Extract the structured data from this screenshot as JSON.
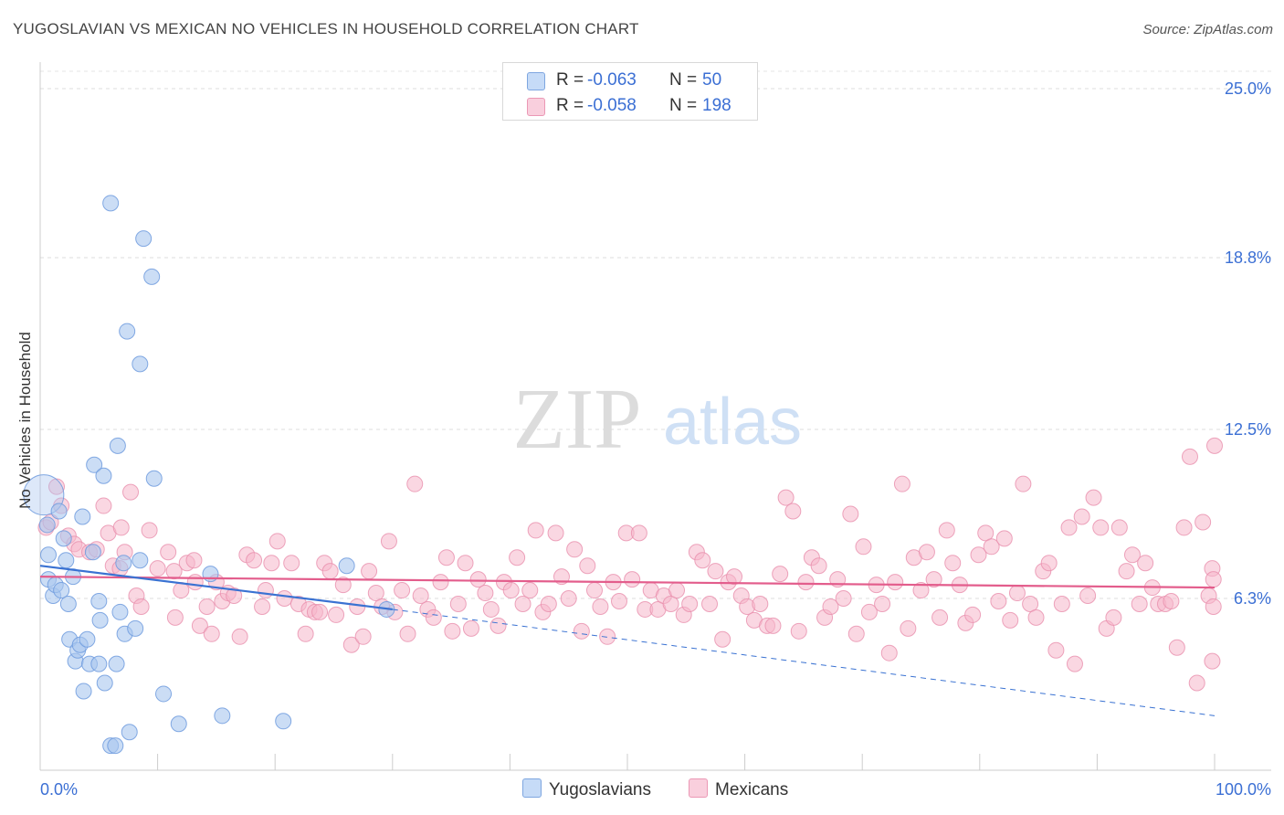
{
  "title": "YUGOSLAVIAN VS MEXICAN NO VEHICLES IN HOUSEHOLD CORRELATION CHART",
  "source": "Source: ZipAtlas.com",
  "watermark": {
    "zip": "ZIP",
    "atlas": "atlas"
  },
  "legend": {
    "rows": [
      {
        "r_label": "R =",
        "r_value": "-0.063",
        "n_label": "N =",
        "n_value": "50",
        "color": "#a9c6ef"
      },
      {
        "r_label": "R =",
        "r_value": "-0.058",
        "n_label": "N =",
        "n_value": "198",
        "color": "#f5b6cb"
      }
    ]
  },
  "bottom_legend": {
    "yugoslavians": "Yugoslavians",
    "mexicans": "Mexicans"
  },
  "chart_data": {
    "type": "scatter",
    "title": "YUGOSLAVIAN VS MEXICAN NO VEHICLES IN HOUSEHOLD CORRELATION CHART",
    "ylabel": "No Vehicles in Household",
    "xlabel": "",
    "xlim": [
      0,
      100
    ],
    "ylim": [
      0,
      25.0
    ],
    "x_tick_labels": [
      "0.0%",
      "100.0%"
    ],
    "y_ticks": [
      6.3,
      12.5,
      18.8,
      25.0
    ],
    "y_tick_labels": [
      "6.3%",
      "12.5%",
      "18.8%",
      "25.0%"
    ],
    "grid": true,
    "colors": {
      "yugoslavians": "#a9c6ef",
      "yugoslavians_edge": "#6f9bde",
      "yugoslavians_line": "#3a72d2",
      "mexicans": "#f5b6cb",
      "mexicans_edge": "#e88eac",
      "mexicans_line": "#e35d8c",
      "tick_label": "#3b6fd4"
    },
    "series": [
      {
        "name": "Yugoslavians",
        "trend": {
          "x0": 0,
          "y0": 7.5,
          "x1": 30,
          "y1": 5.9,
          "dash_to_x": 100,
          "dash_to_y": 2.0
        },
        "points": [
          {
            "x": 0.3,
            "y": 10.1,
            "big": true
          },
          {
            "x": 0.6,
            "y": 9.0
          },
          {
            "x": 0.7,
            "y": 7.9
          },
          {
            "x": 0.7,
            "y": 7.0
          },
          {
            "x": 1.1,
            "y": 6.4
          },
          {
            "x": 1.3,
            "y": 6.8
          },
          {
            "x": 1.6,
            "y": 9.5
          },
          {
            "x": 1.8,
            "y": 6.6
          },
          {
            "x": 2.0,
            "y": 8.5
          },
          {
            "x": 2.2,
            "y": 7.7
          },
          {
            "x": 2.4,
            "y": 6.1
          },
          {
            "x": 2.5,
            "y": 4.8
          },
          {
            "x": 2.8,
            "y": 7.1
          },
          {
            "x": 3.0,
            "y": 4.0
          },
          {
            "x": 3.2,
            "y": 4.4
          },
          {
            "x": 3.4,
            "y": 4.6
          },
          {
            "x": 3.6,
            "y": 9.3
          },
          {
            "x": 3.7,
            "y": 2.9
          },
          {
            "x": 4.0,
            "y": 4.8
          },
          {
            "x": 4.2,
            "y": 3.9
          },
          {
            "x": 4.5,
            "y": 8.0
          },
          {
            "x": 4.6,
            "y": 11.2
          },
          {
            "x": 5.0,
            "y": 6.2
          },
          {
            "x": 5.0,
            "y": 3.9
          },
          {
            "x": 5.1,
            "y": 5.5
          },
          {
            "x": 5.4,
            "y": 10.8
          },
          {
            "x": 5.5,
            "y": 3.2
          },
          {
            "x": 6.0,
            "y": 20.8
          },
          {
            "x": 6.0,
            "y": 0.9
          },
          {
            "x": 6.4,
            "y": 0.9
          },
          {
            "x": 6.5,
            "y": 3.9
          },
          {
            "x": 6.6,
            "y": 11.9
          },
          {
            "x": 6.8,
            "y": 5.8
          },
          {
            "x": 7.1,
            "y": 7.6
          },
          {
            "x": 7.2,
            "y": 5.0
          },
          {
            "x": 7.4,
            "y": 16.1
          },
          {
            "x": 7.6,
            "y": 1.4
          },
          {
            "x": 8.1,
            "y": 5.2
          },
          {
            "x": 8.5,
            "y": 14.9
          },
          {
            "x": 8.5,
            "y": 7.7
          },
          {
            "x": 8.8,
            "y": 19.5
          },
          {
            "x": 9.5,
            "y": 18.1
          },
          {
            "x": 9.7,
            "y": 10.7
          },
          {
            "x": 10.5,
            "y": 2.8
          },
          {
            "x": 11.8,
            "y": 1.7
          },
          {
            "x": 14.5,
            "y": 7.2
          },
          {
            "x": 15.5,
            "y": 2.0
          },
          {
            "x": 20.7,
            "y": 1.8
          },
          {
            "x": 26.1,
            "y": 7.5
          },
          {
            "x": 29.5,
            "y": 5.9
          }
        ]
      },
      {
        "name": "Mexicans",
        "trend": {
          "x0": 0,
          "y0": 7.1,
          "x1": 100,
          "y1": 6.7
        },
        "points": [
          {
            "x": 0.5,
            "y": 8.9
          },
          {
            "x": 0.9,
            "y": 9.1
          },
          {
            "x": 1.4,
            "y": 10.4
          },
          {
            "x": 1.8,
            "y": 9.7
          },
          {
            "x": 2.4,
            "y": 8.6
          },
          {
            "x": 2.9,
            "y": 8.3
          },
          {
            "x": 3.3,
            "y": 8.1
          },
          {
            "x": 4.2,
            "y": 8.0
          },
          {
            "x": 4.8,
            "y": 8.1
          },
          {
            "x": 5.4,
            "y": 9.7
          },
          {
            "x": 5.8,
            "y": 8.7
          },
          {
            "x": 6.2,
            "y": 7.5
          },
          {
            "x": 6.8,
            "y": 7.4
          },
          {
            "x": 6.9,
            "y": 8.9
          },
          {
            "x": 7.2,
            "y": 8.0
          },
          {
            "x": 7.7,
            "y": 10.2
          },
          {
            "x": 8.2,
            "y": 6.4
          },
          {
            "x": 8.6,
            "y": 6.0
          },
          {
            "x": 9.3,
            "y": 8.8
          },
          {
            "x": 10.0,
            "y": 7.4
          },
          {
            "x": 10.9,
            "y": 8.0
          },
          {
            "x": 11.4,
            "y": 7.3
          },
          {
            "x": 11.5,
            "y": 5.6
          },
          {
            "x": 12.0,
            "y": 6.6
          },
          {
            "x": 12.5,
            "y": 7.6
          },
          {
            "x": 13.1,
            "y": 7.7
          },
          {
            "x": 13.2,
            "y": 6.9
          },
          {
            "x": 13.6,
            "y": 5.3
          },
          {
            "x": 14.2,
            "y": 6.0
          },
          {
            "x": 14.6,
            "y": 5.0
          },
          {
            "x": 15.0,
            "y": 6.9
          },
          {
            "x": 15.5,
            "y": 6.2
          },
          {
            "x": 16.0,
            "y": 6.5
          },
          {
            "x": 16.5,
            "y": 6.4
          },
          {
            "x": 17.0,
            "y": 4.9
          },
          {
            "x": 17.6,
            "y": 7.9
          },
          {
            "x": 18.2,
            "y": 7.7
          },
          {
            "x": 18.9,
            "y": 6.0
          },
          {
            "x": 19.2,
            "y": 6.6
          },
          {
            "x": 19.7,
            "y": 7.6
          },
          {
            "x": 20.2,
            "y": 8.4
          },
          {
            "x": 20.8,
            "y": 6.3
          },
          {
            "x": 21.4,
            "y": 7.6
          },
          {
            "x": 22.0,
            "y": 6.1
          },
          {
            "x": 22.6,
            "y": 5.0
          },
          {
            "x": 22.9,
            "y": 5.9
          },
          {
            "x": 23.4,
            "y": 5.8
          },
          {
            "x": 23.8,
            "y": 5.8
          },
          {
            "x": 24.2,
            "y": 7.6
          },
          {
            "x": 24.7,
            "y": 7.3
          },
          {
            "x": 25.2,
            "y": 5.7
          },
          {
            "x": 25.8,
            "y": 6.8
          },
          {
            "x": 26.5,
            "y": 4.6
          },
          {
            "x": 27.0,
            "y": 6.0
          },
          {
            "x": 27.5,
            "y": 4.9
          },
          {
            "x": 28.0,
            "y": 7.3
          },
          {
            "x": 28.6,
            "y": 6.5
          },
          {
            "x": 29.1,
            "y": 6.0
          },
          {
            "x": 29.7,
            "y": 8.4
          },
          {
            "x": 30.2,
            "y": 5.8
          },
          {
            "x": 30.8,
            "y": 6.6
          },
          {
            "x": 31.3,
            "y": 5.0
          },
          {
            "x": 31.9,
            "y": 10.5
          },
          {
            "x": 32.4,
            "y": 6.4
          },
          {
            "x": 33.0,
            "y": 5.9
          },
          {
            "x": 33.5,
            "y": 5.6
          },
          {
            "x": 34.1,
            "y": 6.9
          },
          {
            "x": 34.6,
            "y": 7.8
          },
          {
            "x": 35.1,
            "y": 5.1
          },
          {
            "x": 35.6,
            "y": 6.1
          },
          {
            "x": 36.2,
            "y": 7.6
          },
          {
            "x": 36.7,
            "y": 5.2
          },
          {
            "x": 37.3,
            "y": 7.0
          },
          {
            "x": 37.9,
            "y": 6.5
          },
          {
            "x": 38.4,
            "y": 5.9
          },
          {
            "x": 39.0,
            "y": 5.3
          },
          {
            "x": 39.5,
            "y": 6.9
          },
          {
            "x": 40.1,
            "y": 6.6
          },
          {
            "x": 40.6,
            "y": 7.8
          },
          {
            "x": 41.1,
            "y": 6.1
          },
          {
            "x": 41.7,
            "y": 6.6
          },
          {
            "x": 42.2,
            "y": 8.8
          },
          {
            "x": 42.8,
            "y": 5.8
          },
          {
            "x": 43.3,
            "y": 6.1
          },
          {
            "x": 43.9,
            "y": 8.7
          },
          {
            "x": 44.4,
            "y": 7.1
          },
          {
            "x": 45.0,
            "y": 6.3
          },
          {
            "x": 45.5,
            "y": 8.1
          },
          {
            "x": 46.1,
            "y": 5.1
          },
          {
            "x": 46.6,
            "y": 7.5
          },
          {
            "x": 47.2,
            "y": 6.6
          },
          {
            "x": 47.7,
            "y": 6.0
          },
          {
            "x": 48.3,
            "y": 4.9
          },
          {
            "x": 48.8,
            "y": 6.9
          },
          {
            "x": 49.3,
            "y": 6.2
          },
          {
            "x": 49.9,
            "y": 8.7
          },
          {
            "x": 50.4,
            "y": 7.0
          },
          {
            "x": 51.0,
            "y": 8.7
          },
          {
            "x": 51.5,
            "y": 5.9
          },
          {
            "x": 52.0,
            "y": 6.6
          },
          {
            "x": 52.6,
            "y": 5.9
          },
          {
            "x": 53.1,
            "y": 6.4
          },
          {
            "x": 53.7,
            "y": 6.1
          },
          {
            "x": 54.2,
            "y": 6.6
          },
          {
            "x": 54.8,
            "y": 5.7
          },
          {
            "x": 55.3,
            "y": 6.1
          },
          {
            "x": 55.9,
            "y": 8.0
          },
          {
            "x": 56.4,
            "y": 7.7
          },
          {
            "x": 57.0,
            "y": 6.1
          },
          {
            "x": 57.5,
            "y": 7.3
          },
          {
            "x": 58.1,
            "y": 4.8
          },
          {
            "x": 58.6,
            "y": 6.9
          },
          {
            "x": 59.1,
            "y": 7.1
          },
          {
            "x": 59.7,
            "y": 6.4
          },
          {
            "x": 60.2,
            "y": 6.0
          },
          {
            "x": 60.8,
            "y": 5.5
          },
          {
            "x": 61.3,
            "y": 6.1
          },
          {
            "x": 61.9,
            "y": 5.3
          },
          {
            "x": 62.4,
            "y": 5.3
          },
          {
            "x": 63.0,
            "y": 7.2
          },
          {
            "x": 63.5,
            "y": 10.0
          },
          {
            "x": 64.1,
            "y": 9.5
          },
          {
            "x": 64.6,
            "y": 5.1
          },
          {
            "x": 65.2,
            "y": 6.9
          },
          {
            "x": 65.7,
            "y": 7.8
          },
          {
            "x": 66.3,
            "y": 7.5
          },
          {
            "x": 66.8,
            "y": 5.6
          },
          {
            "x": 67.3,
            "y": 6.0
          },
          {
            "x": 67.9,
            "y": 7.0
          },
          {
            "x": 68.4,
            "y": 6.3
          },
          {
            "x": 69.0,
            "y": 9.4
          },
          {
            "x": 69.5,
            "y": 5.0
          },
          {
            "x": 70.1,
            "y": 8.2
          },
          {
            "x": 70.6,
            "y": 5.8
          },
          {
            "x": 71.2,
            "y": 6.8
          },
          {
            "x": 71.7,
            "y": 6.1
          },
          {
            "x": 72.3,
            "y": 4.3
          },
          {
            "x": 72.8,
            "y": 6.9
          },
          {
            "x": 73.4,
            "y": 10.5
          },
          {
            "x": 73.9,
            "y": 5.2
          },
          {
            "x": 74.4,
            "y": 7.8
          },
          {
            "x": 75.0,
            "y": 6.6
          },
          {
            "x": 75.5,
            "y": 8.0
          },
          {
            "x": 76.1,
            "y": 7.0
          },
          {
            "x": 76.6,
            "y": 5.6
          },
          {
            "x": 77.2,
            "y": 8.8
          },
          {
            "x": 77.7,
            "y": 7.6
          },
          {
            "x": 78.3,
            "y": 6.8
          },
          {
            "x": 78.8,
            "y": 5.4
          },
          {
            "x": 79.4,
            "y": 5.7
          },
          {
            "x": 79.9,
            "y": 7.9
          },
          {
            "x": 80.5,
            "y": 8.7
          },
          {
            "x": 81.0,
            "y": 8.2
          },
          {
            "x": 81.6,
            "y": 6.2
          },
          {
            "x": 82.1,
            "y": 8.5
          },
          {
            "x": 82.6,
            "y": 5.5
          },
          {
            "x": 83.2,
            "y": 6.5
          },
          {
            "x": 83.7,
            "y": 10.5
          },
          {
            "x": 84.3,
            "y": 6.1
          },
          {
            "x": 84.8,
            "y": 5.6
          },
          {
            "x": 85.4,
            "y": 7.3
          },
          {
            "x": 85.9,
            "y": 7.6
          },
          {
            "x": 86.5,
            "y": 4.4
          },
          {
            "x": 87.0,
            "y": 6.1
          },
          {
            "x": 87.6,
            "y": 8.9
          },
          {
            "x": 88.1,
            "y": 3.9
          },
          {
            "x": 88.7,
            "y": 9.3
          },
          {
            "x": 89.2,
            "y": 6.4
          },
          {
            "x": 89.7,
            "y": 10.0
          },
          {
            "x": 90.3,
            "y": 8.9
          },
          {
            "x": 90.8,
            "y": 5.2
          },
          {
            "x": 91.4,
            "y": 5.6
          },
          {
            "x": 91.9,
            "y": 8.9
          },
          {
            "x": 92.5,
            "y": 7.3
          },
          {
            "x": 93.0,
            "y": 7.9
          },
          {
            "x": 93.6,
            "y": 6.1
          },
          {
            "x": 94.1,
            "y": 7.6
          },
          {
            "x": 94.7,
            "y": 6.7
          },
          {
            "x": 95.2,
            "y": 6.1
          },
          {
            "x": 95.8,
            "y": 6.1
          },
          {
            "x": 96.3,
            "y": 6.2
          },
          {
            "x": 96.8,
            "y": 4.5
          },
          {
            "x": 97.4,
            "y": 8.9
          },
          {
            "x": 97.9,
            "y": 11.5
          },
          {
            "x": 98.5,
            "y": 3.2
          },
          {
            "x": 99.0,
            "y": 9.1
          },
          {
            "x": 99.5,
            "y": 6.4
          },
          {
            "x": 99.8,
            "y": 4.0
          }
        ]
      }
    ],
    "extra_points_right": [
      {
        "x": 100.0,
        "y": 11.9,
        "series": "Mexicans"
      },
      {
        "x": 99.8,
        "y": 7.4,
        "series": "Mexicans"
      },
      {
        "x": 99.9,
        "y": 6.0,
        "series": "Mexicans"
      },
      {
        "x": 99.9,
        "y": 7.0,
        "series": "Mexicans"
      }
    ]
  }
}
